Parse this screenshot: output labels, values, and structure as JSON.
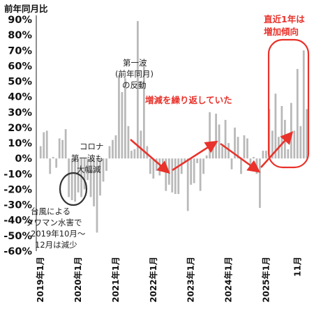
{
  "chart_data": {
    "type": "bar",
    "title": "",
    "ylabel": "前年同月比",
    "xlabel": "",
    "ylim": [
      -60,
      90
    ],
    "ytick_labels": [
      "90%",
      "80%",
      "70%",
      "60%",
      "50%",
      "40%",
      "30%",
      "20%",
      "10%",
      "0%",
      "-10%",
      "-20%",
      "-30%",
      "-40%",
      "-50%",
      "-60%"
    ],
    "ytick_values": [
      90,
      80,
      70,
      60,
      50,
      40,
      30,
      20,
      10,
      0,
      -10,
      -20,
      -30,
      -40,
      -50,
      -60
    ],
    "xtick_labels": [
      {
        "label": "2019年1月",
        "index": 0
      },
      {
        "label": "2020年1月",
        "index": 12
      },
      {
        "label": "2021年1月",
        "index": 24
      },
      {
        "label": "2022年1月",
        "index": 36
      },
      {
        "label": "2023年1月",
        "index": 48
      },
      {
        "label": "2024年1月",
        "index": 60
      },
      {
        "label": "2025年1月",
        "index": 72
      },
      {
        "label": "11月",
        "index": 82
      }
    ],
    "bar_color": "#b9b9b9",
    "grid": false,
    "values": [
      8,
      17,
      18,
      -10,
      1,
      -6,
      13,
      12,
      19,
      -25,
      -27,
      -28,
      -22,
      -25,
      -20,
      -14,
      -25,
      -31,
      -48,
      -24,
      -15,
      -8,
      8,
      12,
      15,
      54,
      43,
      52,
      21,
      5,
      6,
      89,
      18,
      60,
      8,
      -10,
      -13,
      -8,
      -11,
      -5,
      -21,
      -17,
      -22,
      -23,
      -23,
      -10,
      -3,
      -34,
      -17,
      -16,
      -3,
      -21,
      -10,
      2,
      30,
      8,
      29,
      22,
      8,
      25,
      10,
      -7,
      20,
      14,
      -10,
      15,
      13,
      -7,
      1,
      -10,
      -32,
      5,
      5,
      32,
      18,
      42,
      14,
      34,
      25,
      6,
      36,
      18,
      58,
      21,
      70,
      32
    ]
  },
  "annotations": {
    "typhoon_1": "台風による",
    "typhoon_2": "タワマン水害で",
    "typhoon_3": "2019年10月～",
    "typhoon_4": "12月は減少",
    "corona_1": "コロナ",
    "corona_2": "第一波も",
    "corona_3": "大幅減",
    "rebound_1": "第一波",
    "rebound_2": "(前年同月)",
    "rebound_3": "の反動",
    "cycle": "増減を繰り返していた",
    "recent_1": "直近1年は",
    "recent_2": "増加傾向"
  },
  "colors": {
    "annotation_red": "#e8322b",
    "circle_dark": "#333333"
  }
}
